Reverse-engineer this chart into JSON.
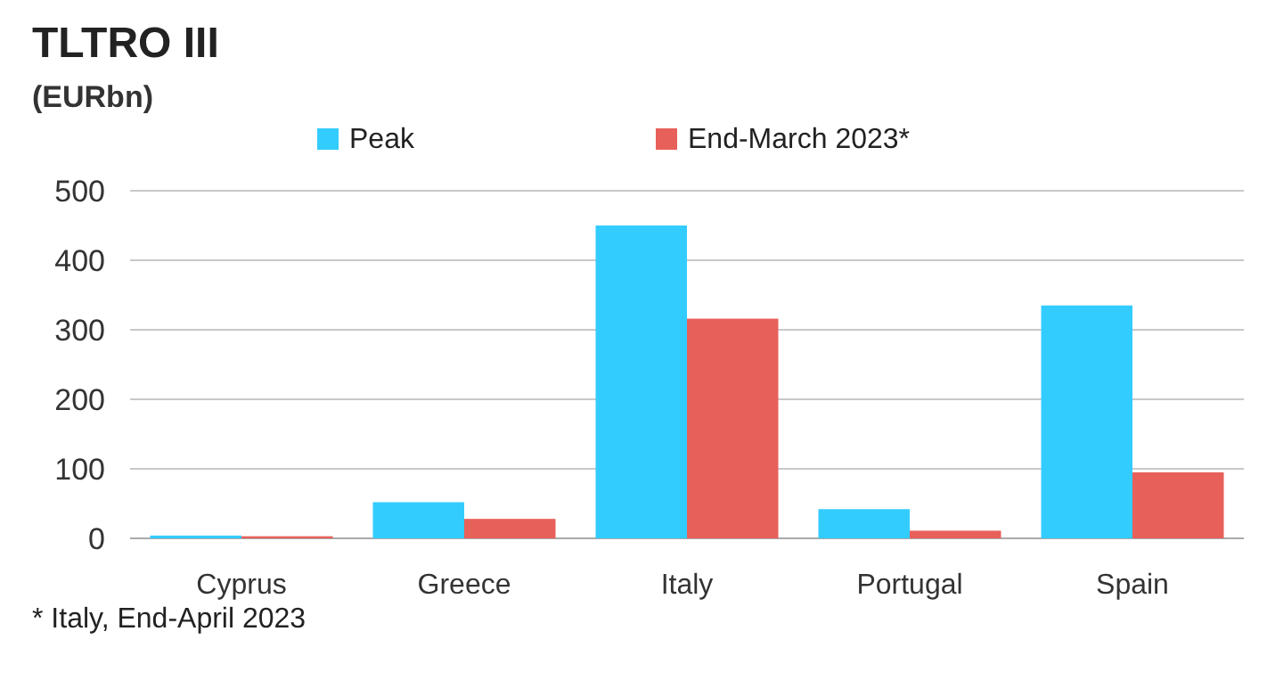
{
  "chart_data": {
    "type": "bar",
    "title": "TLTRO III",
    "subtitle": "(EURbn)",
    "categories": [
      "Cyprus",
      "Greece",
      "Italy",
      "Portugal",
      "Spain"
    ],
    "series": [
      {
        "name": "Peak",
        "color": "#33ccff",
        "values": [
          4,
          52,
          450,
          42,
          335
        ]
      },
      {
        "name": "End-March 2023*",
        "color": "#e8605a",
        "values": [
          3,
          28,
          316,
          11,
          95
        ]
      }
    ],
    "ylim": [
      0,
      500
    ],
    "yticks": [
      0,
      100,
      200,
      300,
      400,
      500
    ],
    "grid": "y",
    "legend": "top",
    "annotations": [
      "* Italy, End-April 2023"
    ]
  }
}
